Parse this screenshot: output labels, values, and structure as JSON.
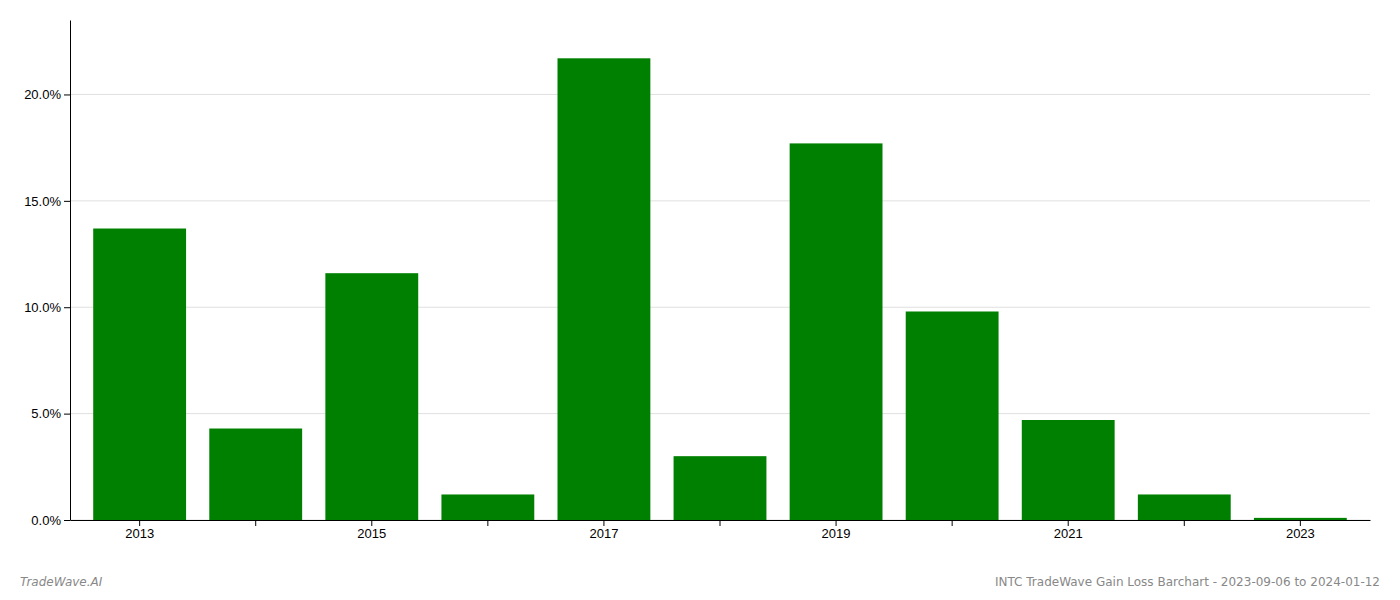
{
  "chart_data": {
    "type": "bar",
    "categories": [
      "2013",
      null,
      "2015",
      null,
      "2017",
      null,
      "2019",
      null,
      "2021",
      null,
      "2023"
    ],
    "values": [
      0.137,
      0.043,
      0.116,
      0.012,
      0.217,
      0.03,
      0.177,
      0.098,
      0.047,
      0.012,
      0.001
    ],
    "color": "#008000",
    "ylim": [
      0,
      0.235
    ],
    "yticks": [
      {
        "value": 0.0,
        "label": "0.0%"
      },
      {
        "value": 0.05,
        "label": "5.0%"
      },
      {
        "value": 0.1,
        "label": "10.0%"
      },
      {
        "value": 0.15,
        "label": "15.0%"
      },
      {
        "value": 0.2,
        "label": "20.0%"
      }
    ],
    "grid": true,
    "annotations": [
      {
        "text": "TradeWave.AI"
      },
      {
        "text": "INTC TradeWave Gain Loss Barchart - 2023-09-06 to 2024-01-12"
      }
    ]
  }
}
